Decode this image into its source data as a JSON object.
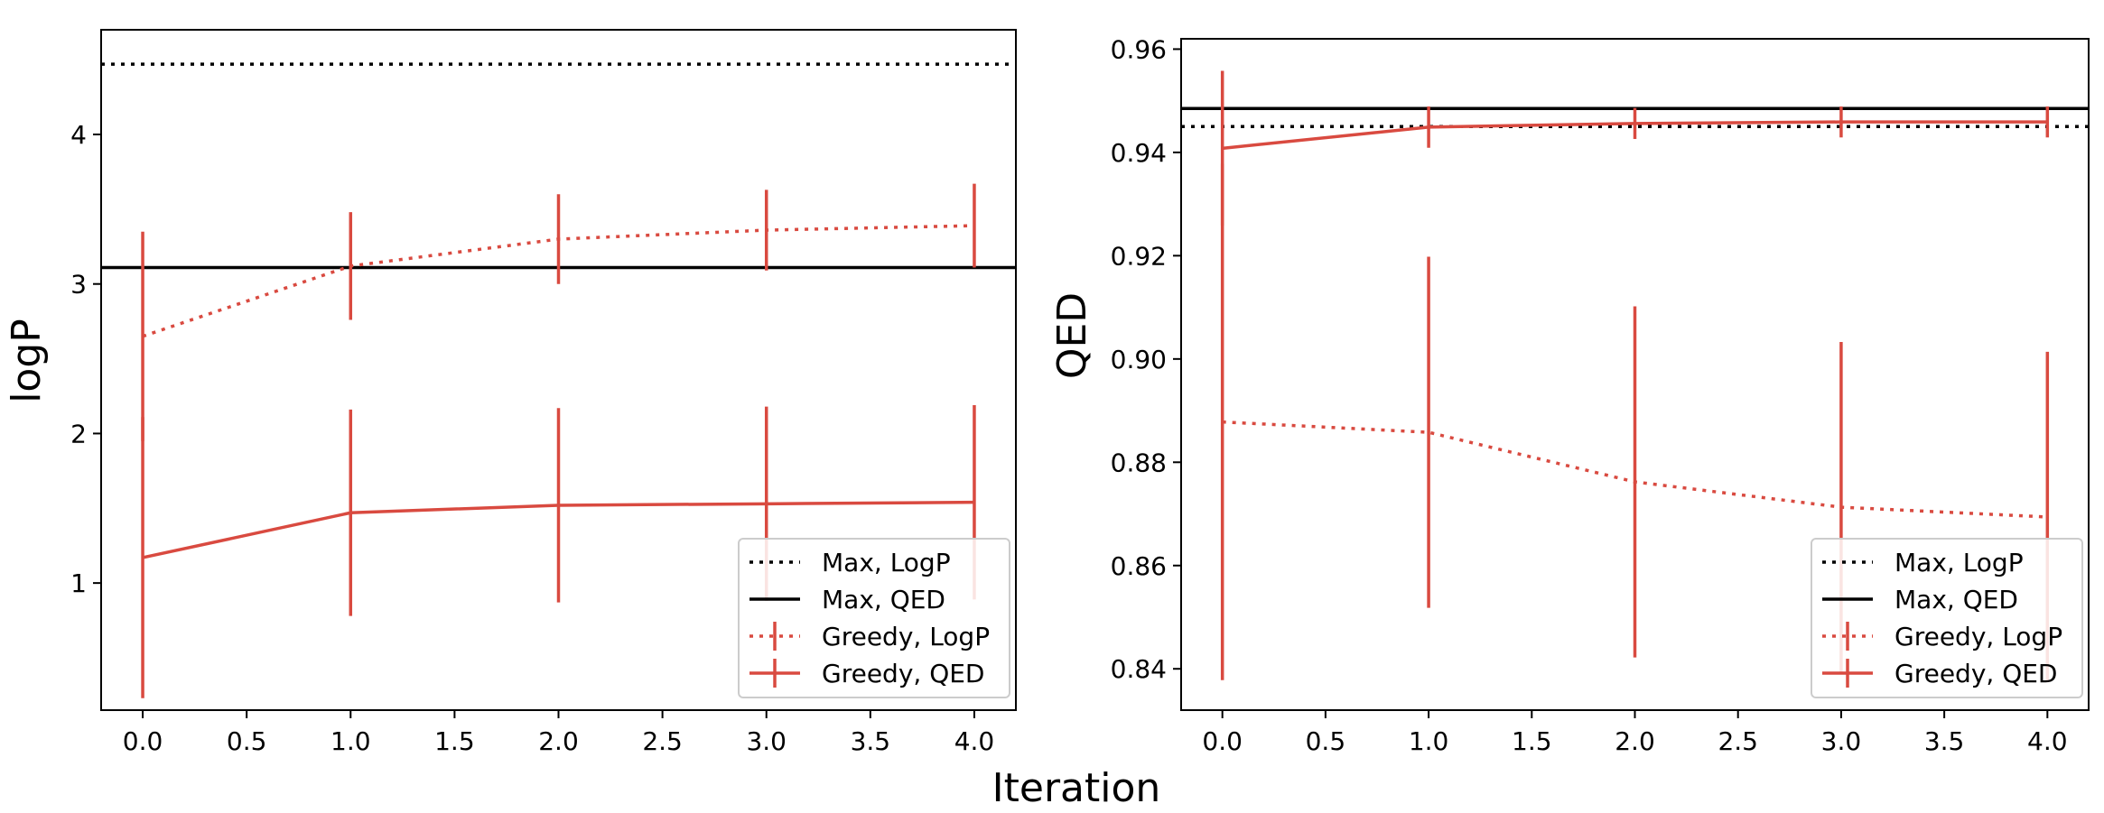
{
  "xlabel": "Iteration",
  "colors": {
    "greedy": "#d94a40",
    "max": "#000000",
    "axis": "#000000"
  },
  "chart_data": [
    {
      "type": "line",
      "ylabel": "logP",
      "xlim": [
        -0.2,
        4.2
      ],
      "ylim": [
        0.15,
        4.7
      ],
      "xticks": [
        0.0,
        0.5,
        1.0,
        1.5,
        2.0,
        2.5,
        3.0,
        3.5,
        4.0
      ],
      "xtick_labels": [
        "0.0",
        "0.5",
        "1.0",
        "1.5",
        "2.0",
        "2.5",
        "3.0",
        "3.5",
        "4.0"
      ],
      "yticks": [
        1,
        2,
        3,
        4
      ],
      "ytick_labels": [
        "1",
        "2",
        "3",
        "4"
      ],
      "hlines": [
        {
          "name": "Max, LogP",
          "y": 4.47,
          "style": "dotted"
        },
        {
          "name": "Max, QED",
          "y": 3.11,
          "style": "solid"
        }
      ],
      "series": [
        {
          "name": "Greedy, LogP",
          "style": "dotted",
          "x": [
            0,
            1,
            2,
            3,
            4
          ],
          "y": [
            2.65,
            3.12,
            3.3,
            3.36,
            3.39
          ],
          "err": [
            0.7,
            0.36,
            0.3,
            0.27,
            0.28
          ]
        },
        {
          "name": "Greedy, QED",
          "style": "solid",
          "x": [
            0,
            1,
            2,
            3,
            4
          ],
          "y": [
            1.17,
            1.47,
            1.52,
            1.53,
            1.54
          ],
          "err": [
            0.94,
            0.69,
            0.65,
            0.65,
            0.65
          ]
        }
      ],
      "legend": {
        "position": "lower-right",
        "entries": [
          "Max, LogP",
          "Max, QED",
          "Greedy, LogP",
          "Greedy, QED"
        ]
      }
    },
    {
      "type": "line",
      "ylabel": "QED",
      "xlim": [
        -0.2,
        4.2
      ],
      "ylim": [
        0.832,
        0.962
      ],
      "xticks": [
        0.0,
        0.5,
        1.0,
        1.5,
        2.0,
        2.5,
        3.0,
        3.5,
        4.0
      ],
      "xtick_labels": [
        "0.0",
        "0.5",
        "1.0",
        "1.5",
        "2.0",
        "2.5",
        "3.0",
        "3.5",
        "4.0"
      ],
      "yticks": [
        0.84,
        0.86,
        0.88,
        0.9,
        0.92,
        0.94,
        0.96
      ],
      "ytick_labels": [
        "0.84",
        "0.86",
        "0.88",
        "0.90",
        "0.92",
        "0.94",
        "0.96"
      ],
      "hlines": [
        {
          "name": "Max, LogP",
          "y": 0.945,
          "style": "dotted"
        },
        {
          "name": "Max, QED",
          "y": 0.9485,
          "style": "solid"
        }
      ],
      "series": [
        {
          "name": "Greedy, LogP",
          "style": "dotted",
          "x": [
            0,
            1,
            2,
            3,
            4
          ],
          "y": [
            0.8878,
            0.8858,
            0.8762,
            0.8713,
            0.8694
          ],
          "err": [
            0.05,
            0.034,
            0.034,
            0.032,
            0.032
          ]
        },
        {
          "name": "Greedy, QED",
          "style": "solid",
          "x": [
            0,
            1,
            2,
            3,
            4
          ],
          "y": [
            0.9408,
            0.9449,
            0.9456,
            0.9459,
            0.9459
          ],
          "err": [
            0.015,
            0.004,
            0.003,
            0.003,
            0.003
          ]
        }
      ],
      "legend": {
        "position": "lower-right",
        "entries": [
          "Max, LogP",
          "Max, QED",
          "Greedy, LogP",
          "Greedy, QED"
        ]
      }
    }
  ]
}
